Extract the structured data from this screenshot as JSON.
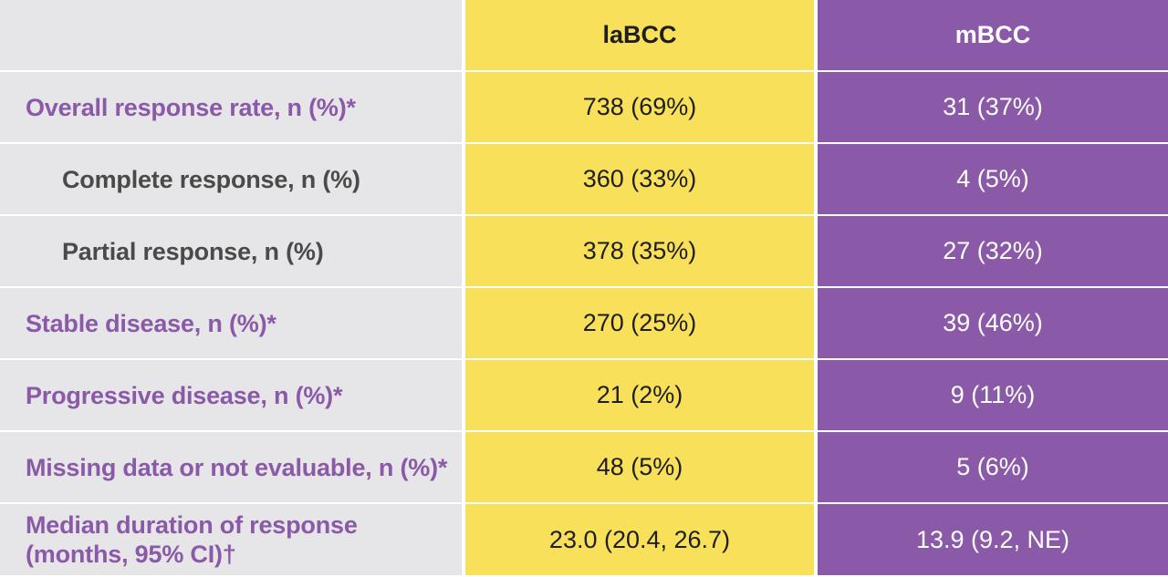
{
  "header": {
    "col_a": "laBCC",
    "col_b": "mBCC"
  },
  "rows": [
    {
      "label": "Overall response rate, n (%)*",
      "type": "main",
      "a": "738 (69%)",
      "b": "31 (37%)"
    },
    {
      "label": "Complete response, n (%)",
      "type": "sub",
      "a": "360 (33%)",
      "b": "4 (5%)"
    },
    {
      "label": "Partial response, n (%)",
      "type": "sub",
      "a": "378 (35%)",
      "b": "27 (32%)"
    },
    {
      "label": "Stable disease, n (%)*",
      "type": "main",
      "a": "270 (25%)",
      "b": "39 (46%)"
    },
    {
      "label": "Progressive disease, n (%)*",
      "type": "main",
      "a": "21 (2%)",
      "b": "9 (11%)"
    },
    {
      "label": "Missing data or not evaluable, n (%)*",
      "type": "main",
      "a": "48 (5%)",
      "b": "5 (6%)"
    }
  ],
  "last_row": {
    "label_line1": "Median duration of response",
    "label_line2": "(months, 95% CI)†",
    "a": "23.0 (20.4, 26.7)",
    "b": "13.9 (9.2, NE)"
  },
  "colors": {
    "label_bg": "#e6e6e8",
    "main_label": "#8a5aa8",
    "sub_label": "#4a4a4a",
    "col_a_bg": "#f8e05a",
    "col_b_bg": "#8a5aa8"
  }
}
